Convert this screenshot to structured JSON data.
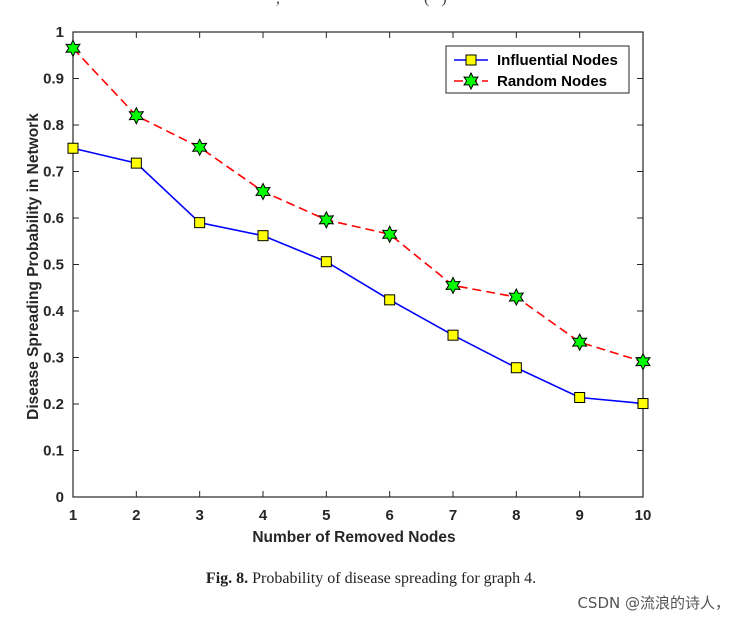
{
  "top_fragment": ",                                    (   )",
  "chart_data": {
    "type": "line",
    "x": [
      1,
      2,
      3,
      4,
      5,
      6,
      7,
      8,
      9,
      10
    ],
    "series": [
      {
        "name": "Influential Nodes",
        "values": [
          0.75,
          0.718,
          0.59,
          0.562,
          0.506,
          0.424,
          0.348,
          0.278,
          0.214,
          0.201
        ],
        "color": "#0000ff",
        "line_style": "solid",
        "marker": "square",
        "marker_fill": "#ffff00"
      },
      {
        "name": "Random Nodes",
        "values": [
          0.965,
          0.82,
          0.752,
          0.657,
          0.596,
          0.565,
          0.455,
          0.43,
          0.333,
          0.291
        ],
        "color": "#ff0000",
        "line_style": "dashed",
        "marker": "hexagram",
        "marker_fill": "#00ff00"
      }
    ],
    "xlabel": "Number of Removed Nodes",
    "ylabel": "Disease Spreading Probability in Network",
    "xlim": [
      1,
      10
    ],
    "ylim": [
      0,
      1
    ],
    "xticks": [
      "1",
      "2",
      "3",
      "4",
      "5",
      "6",
      "7",
      "8",
      "9",
      "10"
    ],
    "yticks": [
      "0",
      "0.1",
      "0.2",
      "0.3",
      "0.4",
      "0.5",
      "0.6",
      "0.7",
      "0.8",
      "0.9",
      "1"
    ],
    "grid": false,
    "legend_position": "top-right"
  },
  "caption": {
    "label": "Fig. 8.",
    "text": "Probability of disease spreading for graph 4."
  },
  "watermark": "CSDN @流浪的诗人，"
}
